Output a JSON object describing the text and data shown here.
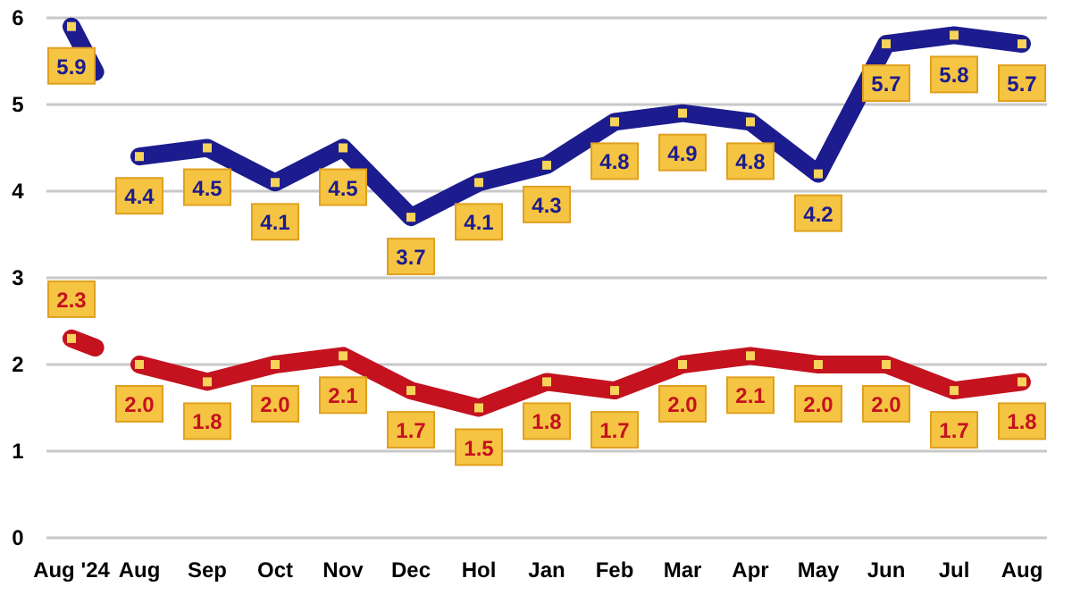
{
  "chart_data": {
    "type": "line",
    "categories": [
      "Aug '24",
      "Aug",
      "Sep",
      "Oct",
      "Nov",
      "Dec",
      "Hol",
      "Jan",
      "Feb",
      "Mar",
      "Apr",
      "May",
      "Jun",
      "Jul",
      "Aug"
    ],
    "series": [
      {
        "color": "#1c1c8f",
        "values": [
          5.9,
          4.4,
          4.5,
          4.1,
          4.5,
          3.7,
          4.1,
          4.3,
          4.8,
          4.9,
          4.8,
          4.2,
          5.7,
          5.8,
          5.7
        ],
        "value_labels": [
          "5.9",
          "4.4",
          "4.5",
          "4.1",
          "4.5",
          "3.7",
          "4.1",
          "4.3",
          "4.8",
          "4.9",
          "4.8",
          "4.2",
          "5.7",
          "5.8",
          "5.7"
        ]
      },
      {
        "color": "#c4121f",
        "values": [
          2.3,
          2.0,
          1.8,
          2.0,
          2.1,
          1.7,
          1.5,
          1.8,
          1.7,
          2.0,
          2.1,
          2.0,
          2.0,
          1.7,
          1.8
        ],
        "value_labels": [
          "2.3",
          "2.0",
          "1.8",
          "2.0",
          "2.1",
          "1.7",
          "1.5",
          "1.8",
          "1.7",
          "2.0",
          "2.1",
          "2.0",
          "2.0",
          "1.7",
          "1.8"
        ]
      }
    ],
    "ylim": [
      0,
      6
    ],
    "yticks": [
      0,
      1,
      2,
      3,
      4,
      5,
      6
    ],
    "grid": "y",
    "marker": "square",
    "line_style": "solid"
  }
}
